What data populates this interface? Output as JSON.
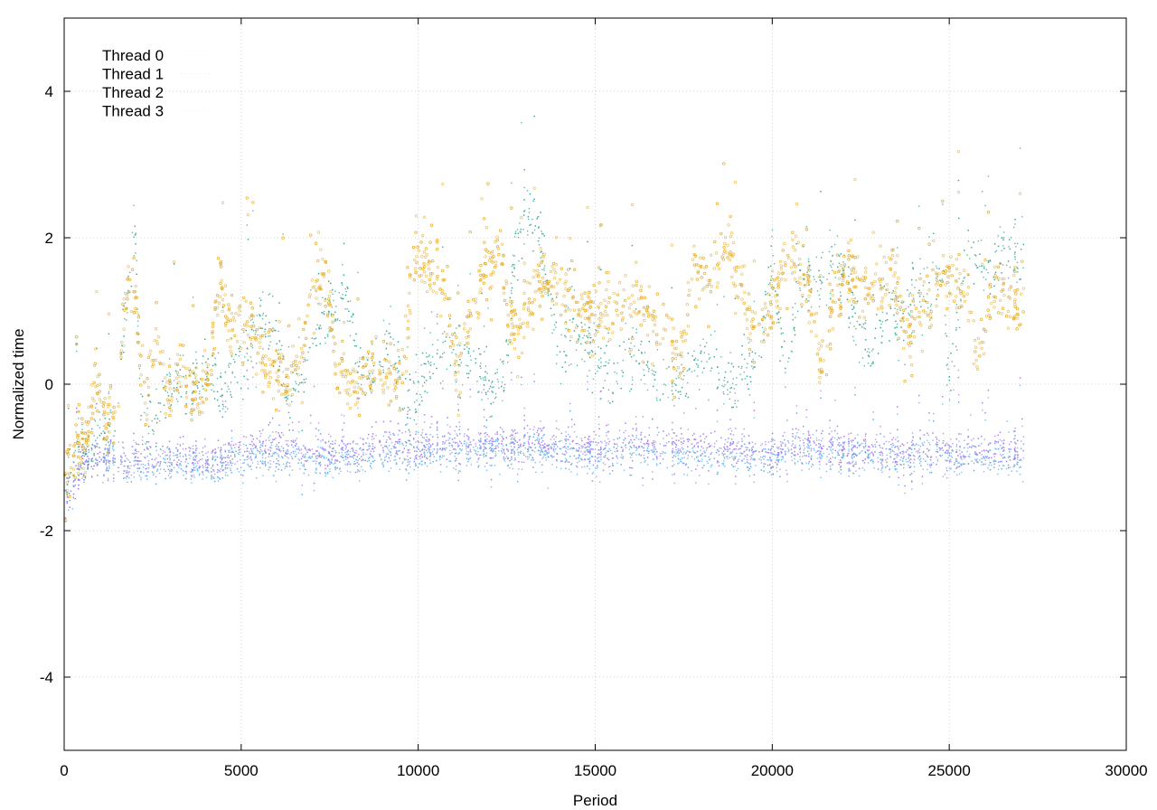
{
  "chart_data": {
    "type": "scatter",
    "title": "",
    "xlabel": "Period",
    "ylabel": "Normalized time",
    "xlim": [
      0,
      30000
    ],
    "ylim": [
      -5,
      5
    ],
    "x_ticks": [
      0,
      5000,
      10000,
      15000,
      20000,
      25000,
      30000
    ],
    "y_ticks": [
      -4,
      -2,
      0,
      2,
      4
    ],
    "grid": true,
    "legend_position": "top-left",
    "x_max_data": 27100,
    "series": [
      {
        "name": "Thread 0",
        "color": "#e6b030",
        "level_trend": [
          [
            0,
            -1.5
          ],
          [
            300,
            -0.8
          ],
          [
            600,
            -0.9
          ],
          [
            900,
            0.1
          ],
          [
            1200,
            -0.5
          ],
          [
            1500,
            -0.3
          ],
          [
            1800,
            1.7
          ],
          [
            2000,
            1.1
          ],
          [
            2300,
            -0.3
          ],
          [
            2600,
            0.8
          ],
          [
            2900,
            -0.2
          ],
          [
            3200,
            0.1
          ],
          [
            3500,
            0.0
          ],
          [
            3800,
            -0.2
          ],
          [
            4100,
            0.2
          ],
          [
            4400,
            1.6
          ],
          [
            4700,
            0.7
          ],
          [
            5000,
            0.9
          ],
          [
            5300,
            0.8
          ],
          [
            5600,
            0.3
          ],
          [
            6000,
            0.2
          ],
          [
            6300,
            0.1
          ],
          [
            6600,
            0.2
          ],
          [
            7000,
            1.4
          ],
          [
            7400,
            1.5
          ],
          [
            7700,
            0.2
          ],
          [
            8100,
            0.0
          ],
          [
            8500,
            0.2
          ],
          [
            9000,
            0.1
          ],
          [
            9500,
            0.0
          ],
          [
            9900,
            1.9
          ],
          [
            10300,
            1.6
          ],
          [
            10700,
            1.4
          ],
          [
            11100,
            0.2
          ],
          [
            11500,
            1.0
          ],
          [
            11900,
            1.6
          ],
          [
            12300,
            1.8
          ],
          [
            12700,
            0.7
          ],
          [
            13100,
            1.0
          ],
          [
            13500,
            1.4
          ],
          [
            13900,
            1.5
          ],
          [
            14300,
            1.1
          ],
          [
            14700,
            1.0
          ],
          [
            15100,
            0.9
          ],
          [
            15500,
            1.1
          ],
          [
            15900,
            1.0
          ],
          [
            16300,
            1.1
          ],
          [
            16700,
            0.9
          ],
          [
            17000,
            0.8
          ],
          [
            17400,
            0.3
          ],
          [
            17800,
            1.7
          ],
          [
            18200,
            1.4
          ],
          [
            18600,
            1.9
          ],
          [
            19000,
            1.5
          ],
          [
            19400,
            0.8
          ],
          [
            19800,
            0.9
          ],
          [
            20200,
            1.5
          ],
          [
            20600,
            1.7
          ],
          [
            21000,
            1.4
          ],
          [
            21400,
            0.2
          ],
          [
            21800,
            1.2
          ],
          [
            22200,
            1.6
          ],
          [
            22600,
            1.2
          ],
          [
            23000,
            1.3
          ],
          [
            23400,
            1.6
          ],
          [
            23800,
            0.7
          ],
          [
            24200,
            1.0
          ],
          [
            24600,
            1.2
          ],
          [
            25000,
            1.5
          ],
          [
            25400,
            1.4
          ],
          [
            25800,
            0.3
          ],
          [
            26200,
            1.3
          ],
          [
            26600,
            1.2
          ],
          [
            27100,
            1.0
          ]
        ]
      },
      {
        "name": "Thread 1",
        "color": "#3aa893",
        "level_trend": [
          [
            0,
            -1.5
          ],
          [
            300,
            -0.9
          ],
          [
            700,
            -1.0
          ],
          [
            1000,
            -0.6
          ],
          [
            1400,
            -0.8
          ],
          [
            1800,
            1.5
          ],
          [
            2000,
            2.0
          ],
          [
            2200,
            -0.6
          ],
          [
            2600,
            -0.4
          ],
          [
            3000,
            0.0
          ],
          [
            3400,
            -0.1
          ],
          [
            3800,
            0.1
          ],
          [
            4200,
            0.3
          ],
          [
            4500,
            -0.1
          ],
          [
            4800,
            0.2
          ],
          [
            5200,
            0.5
          ],
          [
            5600,
            0.9
          ],
          [
            6000,
            0.6
          ],
          [
            6400,
            -0.3
          ],
          [
            6800,
            0.3
          ],
          [
            7200,
            0.9
          ],
          [
            7600,
            1.1
          ],
          [
            8000,
            1.2
          ],
          [
            8400,
            0.2
          ],
          [
            8800,
            0.1
          ],
          [
            9200,
            0.6
          ],
          [
            9600,
            -0.2
          ],
          [
            10000,
            0.0
          ],
          [
            10400,
            0.4
          ],
          [
            10800,
            0.6
          ],
          [
            11200,
            0.3
          ],
          [
            11600,
            0.4
          ],
          [
            12000,
            -0.1
          ],
          [
            12400,
            0.0
          ],
          [
            12800,
            2.1
          ],
          [
            13200,
            2.3
          ],
          [
            13600,
            1.6
          ],
          [
            14000,
            0.4
          ],
          [
            14400,
            0.8
          ],
          [
            14800,
            0.5
          ],
          [
            15200,
            0.3
          ],
          [
            15600,
            0.1
          ],
          [
            16000,
            0.5
          ],
          [
            16400,
            0.3
          ],
          [
            16800,
            0.1
          ],
          [
            17200,
            0.0
          ],
          [
            17600,
            0.1
          ],
          [
            18000,
            0.4
          ],
          [
            18400,
            0.4
          ],
          [
            18800,
            -0.2
          ],
          [
            19200,
            0.2
          ],
          [
            19600,
            0.3
          ],
          [
            20000,
            1.8
          ],
          [
            20400,
            0.0
          ],
          [
            20800,
            1.5
          ],
          [
            21200,
            1.4
          ],
          [
            21600,
            1.5
          ],
          [
            22000,
            1.5
          ],
          [
            22400,
            0.8
          ],
          [
            22800,
            0.3
          ],
          [
            23200,
            1.1
          ],
          [
            23600,
            0.9
          ],
          [
            24000,
            1.3
          ],
          [
            24400,
            1.2
          ],
          [
            24800,
            1.4
          ],
          [
            25000,
            0.0
          ],
          [
            25400,
            1.6
          ],
          [
            25800,
            1.7
          ],
          [
            26200,
            1.5
          ],
          [
            26600,
            1.9
          ],
          [
            27100,
            1.6
          ]
        ]
      },
      {
        "name": "Thread 2",
        "color": "#a87ef0",
        "level_trend": [
          [
            0,
            -1.6
          ],
          [
            500,
            -1.1
          ],
          [
            1000,
            -1.0
          ],
          [
            2000,
            -1.0
          ],
          [
            3000,
            -1.0
          ],
          [
            4000,
            -1.0
          ],
          [
            5000,
            -0.9
          ],
          [
            6000,
            -0.8
          ],
          [
            7000,
            -0.9
          ],
          [
            8000,
            -0.9
          ],
          [
            9000,
            -0.8
          ],
          [
            10000,
            -0.8
          ],
          [
            11000,
            -0.8
          ],
          [
            12000,
            -0.8
          ],
          [
            13000,
            -0.8
          ],
          [
            14000,
            -0.8
          ],
          [
            15000,
            -0.9
          ],
          [
            16000,
            -0.8
          ],
          [
            17000,
            -0.8
          ],
          [
            18000,
            -0.8
          ],
          [
            19000,
            -0.9
          ],
          [
            20000,
            -0.9
          ],
          [
            21000,
            -0.8
          ],
          [
            22000,
            -0.9
          ],
          [
            23000,
            -0.9
          ],
          [
            24000,
            -0.9
          ],
          [
            25000,
            -0.9
          ],
          [
            26000,
            -0.9
          ],
          [
            27100,
            -0.9
          ]
        ]
      },
      {
        "name": "Thread 3",
        "color": "#60aee8",
        "level_trend": [
          [
            0,
            -1.6
          ],
          [
            500,
            -1.1
          ],
          [
            1000,
            -1.0
          ],
          [
            2000,
            -1.1
          ],
          [
            3000,
            -1.1
          ],
          [
            4000,
            -1.1
          ],
          [
            5000,
            -1.0
          ],
          [
            6000,
            -1.0
          ],
          [
            7000,
            -1.0
          ],
          [
            8000,
            -1.0
          ],
          [
            9000,
            -1.0
          ],
          [
            10000,
            -0.9
          ],
          [
            11000,
            -0.9
          ],
          [
            12000,
            -0.9
          ],
          [
            13000,
            -0.9
          ],
          [
            14000,
            -0.9
          ],
          [
            15000,
            -1.0
          ],
          [
            16000,
            -0.9
          ],
          [
            17000,
            -0.9
          ],
          [
            18000,
            -1.0
          ],
          [
            19000,
            -1.0
          ],
          [
            20000,
            -1.0
          ],
          [
            21000,
            -0.9
          ],
          [
            22000,
            -1.0
          ],
          [
            23000,
            -1.0
          ],
          [
            24000,
            -1.0
          ],
          [
            25000,
            -1.0
          ],
          [
            26000,
            -1.0
          ],
          [
            27100,
            -1.0
          ]
        ]
      }
    ]
  }
}
